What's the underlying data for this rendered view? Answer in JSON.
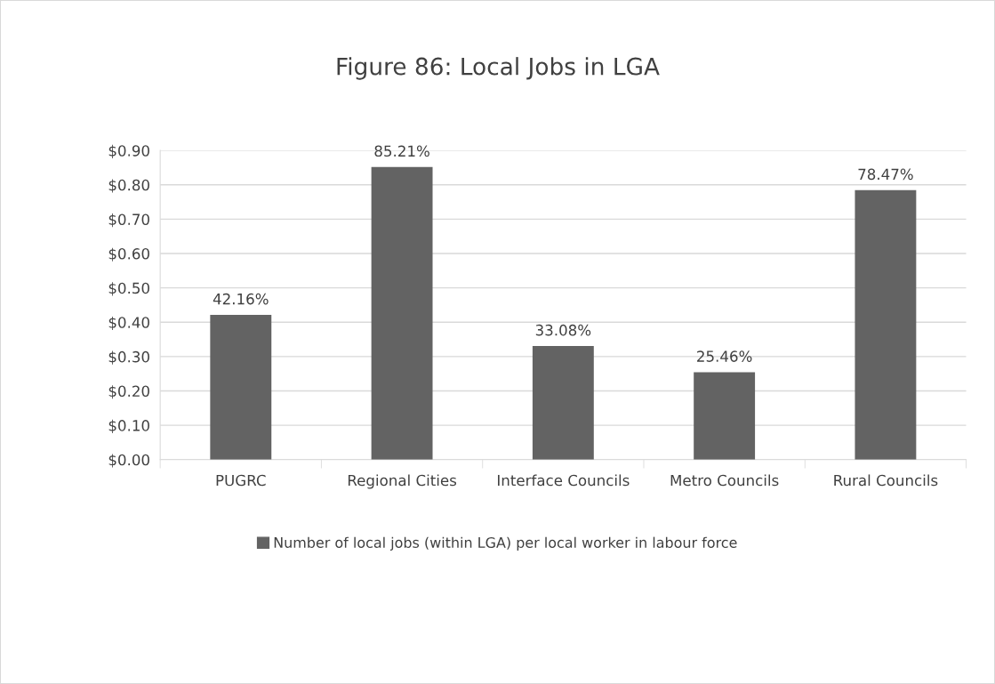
{
  "chart_data": {
    "type": "bar",
    "title": "Figure 86: Local Jobs in LGA",
    "categories": [
      "PUGRC",
      "Regional Cities",
      "Interface Councils",
      "Metro Councils",
      "Rural Councils"
    ],
    "series": [
      {
        "name": "Number of local jobs (within LGA) per local worker in labour force",
        "color": "#636363",
        "values": [
          0.4216,
          0.8521,
          0.3308,
          0.2546,
          0.7847
        ],
        "value_labels": [
          "42.16%",
          "85.21%",
          "33.08%",
          "25.46%",
          "78.47%"
        ]
      }
    ],
    "ylim": [
      0,
      0.9
    ],
    "yticks": [
      {
        "value": 0,
        "label": "$0.00"
      },
      {
        "value": 0.1,
        "label": "$0.10"
      },
      {
        "value": 0.2,
        "label": "$0.20"
      },
      {
        "value": 0.3,
        "label": "$0.30"
      },
      {
        "value": 0.4,
        "label": "$0.40"
      },
      {
        "value": 0.5,
        "label": "$0.50"
      },
      {
        "value": 0.6,
        "label": "$0.60"
      },
      {
        "value": 0.7,
        "label": "$0.70"
      },
      {
        "value": 0.8,
        "label": "$0.80"
      },
      {
        "value": 0.9,
        "label": "$0.90"
      }
    ],
    "grid": "y",
    "legend": "bottom"
  }
}
